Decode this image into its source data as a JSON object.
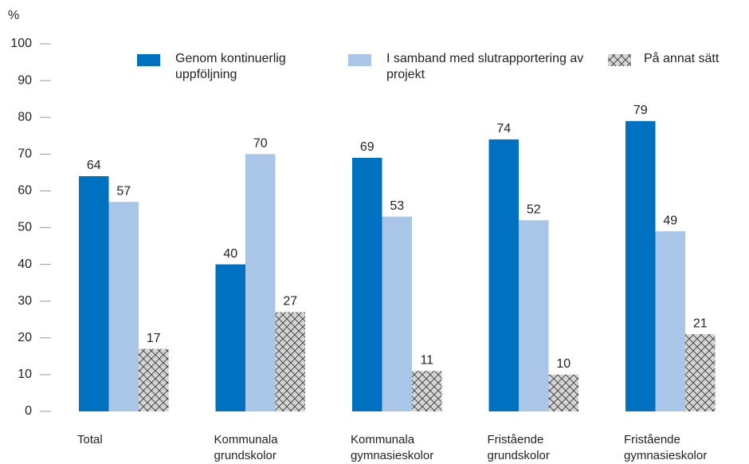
{
  "chart_data": {
    "type": "bar",
    "y_label": "%",
    "categories": [
      "Total",
      "Kommunala grundskolor",
      "Kommunala gymnasieskolor",
      "Fristående grundskolor",
      "Fristående gymnasieskolor"
    ],
    "series": [
      {
        "name": "Genom kontinuerlig uppföljning",
        "color": "#0070c0",
        "values": [
          64,
          40,
          69,
          74,
          79
        ]
      },
      {
        "name": "I samband med slutrapportering av projekt",
        "color": "#a9c6e8",
        "values": [
          57,
          70,
          53,
          52,
          49
        ]
      },
      {
        "name": "På annat sätt",
        "color": "#d4d4d4",
        "pattern": "crosshatch",
        "values": [
          17,
          27,
          11,
          10,
          21
        ]
      }
    ],
    "ylim": [
      0,
      100
    ],
    "yticks": [
      0,
      10,
      20,
      30,
      40,
      50,
      60,
      70,
      80,
      90,
      100
    ],
    "legend": "top"
  }
}
